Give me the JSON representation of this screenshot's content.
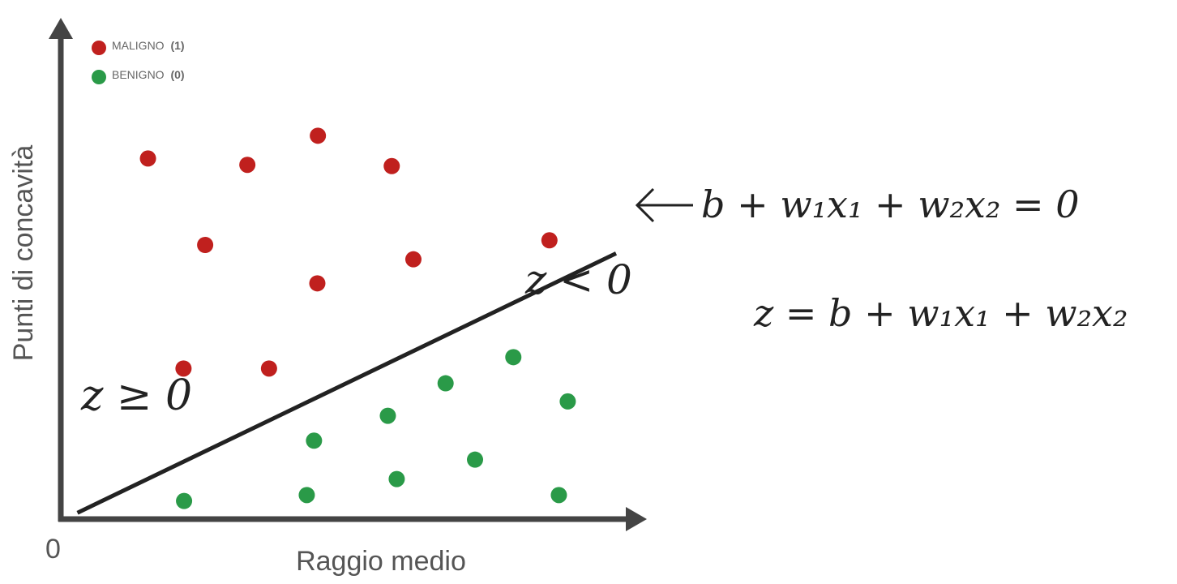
{
  "chart_data": {
    "type": "scatter",
    "xlabel": "Raggio medio",
    "ylabel": "Punti di concavità",
    "origin_label": "0",
    "series": [
      {
        "name": "MALIGNO",
        "code": "(1)",
        "color": "#c0201e",
        "points": [
          [
            0.157,
            0.855
          ],
          [
            0.336,
            0.84
          ],
          [
            0.463,
            0.909
          ],
          [
            0.596,
            0.837
          ],
          [
            0.26,
            0.65
          ],
          [
            0.635,
            0.616
          ],
          [
            0.462,
            0.559
          ],
          [
            0.221,
            0.357
          ],
          [
            0.375,
            0.357
          ],
          [
            0.88,
            0.661
          ]
        ]
      },
      {
        "name": "BENIGNO",
        "code": "(0)",
        "color": "#2a9a48",
        "points": [
          [
            0.222,
            0.043
          ],
          [
            0.443,
            0.057
          ],
          [
            0.605,
            0.095
          ],
          [
            0.746,
            0.141
          ],
          [
            0.897,
            0.057
          ],
          [
            0.456,
            0.186
          ],
          [
            0.589,
            0.245
          ],
          [
            0.693,
            0.322
          ],
          [
            0.815,
            0.384
          ],
          [
            0.913,
            0.279
          ]
        ]
      }
    ],
    "decision_boundary": {
      "from": [
        0.03,
        0.015
      ],
      "to": [
        1.0,
        0.63
      ]
    },
    "annotations": {
      "boundary_equation": "b + w₁x₁ + w₂x₂ = 0",
      "z_definition": "z = b + w₁x₁ + w₂x₂",
      "region_positive": "z ≥ 0",
      "region_negative": "z < 0"
    },
    "legend_position": "top-left",
    "grid": false
  }
}
